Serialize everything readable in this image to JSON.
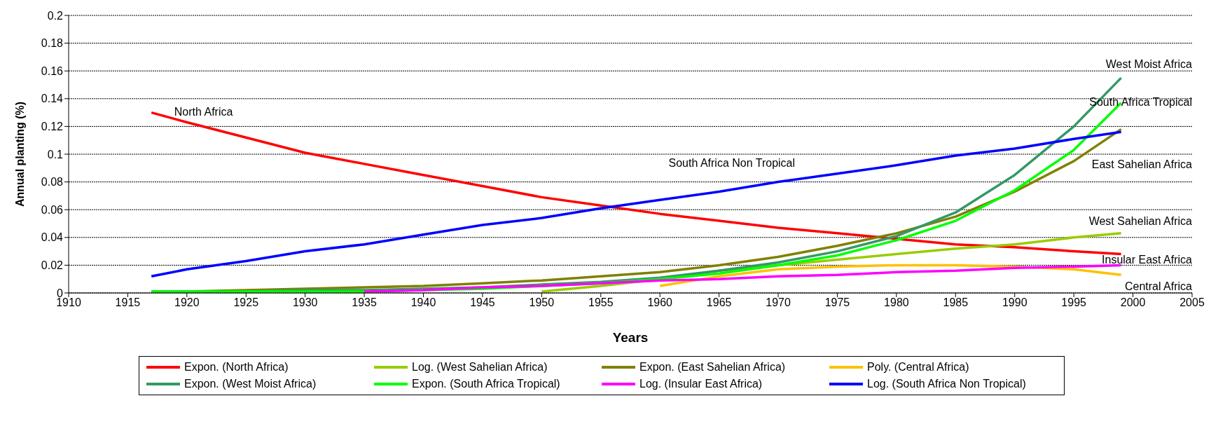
{
  "chart_data": {
    "type": "line",
    "xlabel": "Years",
    "ylabel": "Annual planting (%)",
    "x": [
      1917,
      1920,
      1925,
      1930,
      1935,
      1940,
      1945,
      1950,
      1955,
      1960,
      1965,
      1970,
      1975,
      1980,
      1985,
      1990,
      1995,
      1999
    ],
    "series": [
      {
        "name": "Expon. (North Africa)",
        "color": "#ff0000",
        "values": [
          0.13,
          0.123,
          0.112,
          0.101,
          0.093,
          0.085,
          0.077,
          0.069,
          0.063,
          0.057,
          0.052,
          0.047,
          0.043,
          0.039,
          0.035,
          0.033,
          0.03,
          0.028
        ]
      },
      {
        "name": "Log. (West Sahelian Africa)",
        "color": "#99cc00",
        "values": [
          null,
          null,
          null,
          null,
          null,
          null,
          null,
          0.001,
          0.005,
          0.01,
          0.016,
          0.02,
          0.024,
          0.028,
          0.032,
          0.035,
          0.04,
          0.043
        ]
      },
      {
        "name": "Expon. (East Sahelian Africa)",
        "color": "#808000",
        "values": [
          0.001,
          0.001,
          0.002,
          0.003,
          0.004,
          0.005,
          0.007,
          0.009,
          0.012,
          0.015,
          0.02,
          0.026,
          0.034,
          0.043,
          0.055,
          0.073,
          0.095,
          0.118
        ]
      },
      {
        "name": "Poly. (Central Africa)",
        "color": "#ffc000",
        "values": [
          null,
          null,
          null,
          null,
          null,
          null,
          null,
          null,
          null,
          0.005,
          0.012,
          0.017,
          0.019,
          0.02,
          0.02,
          0.019,
          0.017,
          0.013
        ]
      },
      {
        "name": "Expon. (West Moist Africa)",
        "color": "#339966",
        "values": [
          0.001,
          0.001,
          0.001,
          0.002,
          0.002,
          0.003,
          0.004,
          0.006,
          0.008,
          0.011,
          0.016,
          0.022,
          0.03,
          0.041,
          0.058,
          0.085,
          0.12,
          0.155
        ]
      },
      {
        "name": "Expon. (South Africa Tropical)",
        "color": "#00ff00",
        "values": [
          0.001,
          0.001,
          0.001,
          0.001,
          0.001,
          0.002,
          0.003,
          0.005,
          0.007,
          0.01,
          0.014,
          0.02,
          0.027,
          0.038,
          0.052,
          0.074,
          0.103,
          0.137
        ]
      },
      {
        "name": "Log. (Insular East Africa)",
        "color": "#ff00ff",
        "values": [
          null,
          null,
          null,
          null,
          0.001,
          0.002,
          0.004,
          0.005,
          0.007,
          0.009,
          0.01,
          0.012,
          0.013,
          0.015,
          0.016,
          0.018,
          0.019,
          0.02
        ]
      },
      {
        "name": "Log. (South Africa Non Tropical)",
        "color": "#0000ff",
        "values": [
          0.012,
          0.017,
          0.023,
          0.03,
          0.035,
          0.042,
          0.049,
          0.054,
          0.061,
          0.067,
          0.073,
          0.08,
          0.086,
          0.092,
          0.099,
          0.104,
          0.111,
          0.116
        ]
      }
    ],
    "xlim": [
      1910,
      2005
    ],
    "xticks": [
      1910,
      1915,
      1920,
      1925,
      1930,
      1935,
      1940,
      1945,
      1950,
      1955,
      1960,
      1965,
      1970,
      1975,
      1980,
      1985,
      1990,
      1995,
      2000,
      2005
    ],
    "ylim": [
      0,
      0.2
    ],
    "yticks": [
      0,
      0.02,
      0.04,
      0.06,
      0.08,
      0.1,
      0.12,
      0.14,
      0.16,
      0.18,
      0.2
    ],
    "grid": "y",
    "legend": "bottom",
    "marker": "none",
    "line_style": "solid",
    "annotations": [
      "North Africa",
      "South Africa Non Tropical",
      "West Moist Africa",
      "South Africa Tropical",
      "East Sahelian Africa",
      "West Sahelian Africa",
      "Insular East Africa",
      "Central Africa"
    ]
  }
}
